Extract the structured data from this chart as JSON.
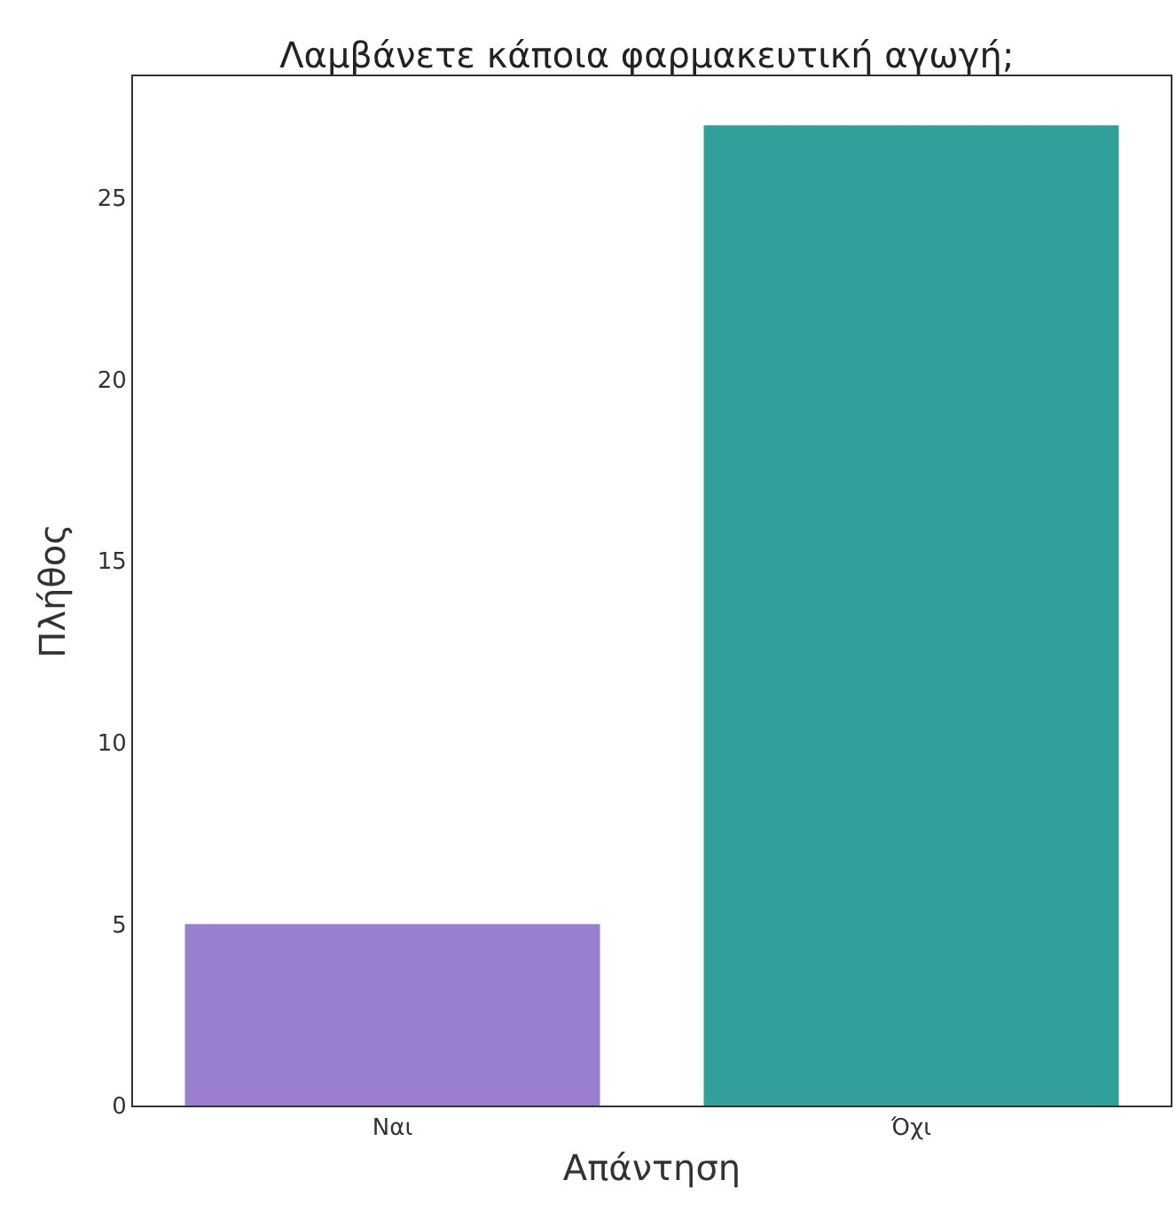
{
  "chart_data": {
    "type": "bar",
    "title": "Λαμβάνετε κάποια φαρμακευτική αγωγή;",
    "xlabel": "Απάντηση",
    "ylabel": "Πλήθος",
    "categories": [
      "Ναι",
      "Όχι"
    ],
    "values": [
      5,
      27
    ],
    "colors": [
      "#9a7fd1",
      "#32a09a"
    ],
    "ylim": [
      0,
      28.35
    ],
    "yticks": [
      0,
      5,
      10,
      15,
      20,
      25
    ]
  }
}
